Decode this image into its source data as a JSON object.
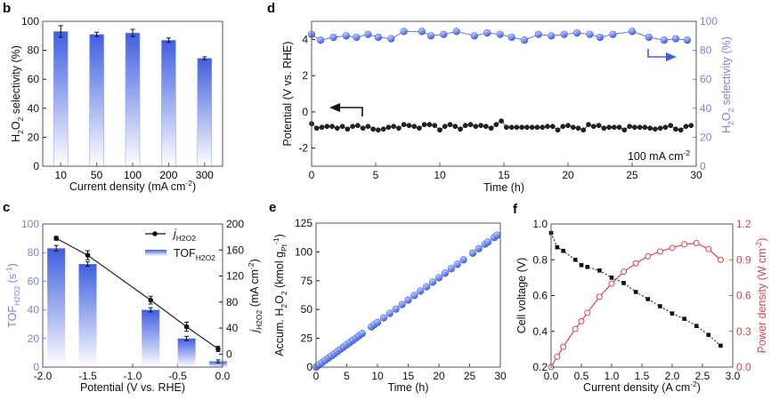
{
  "colors": {
    "blue": "#3f5fe0",
    "blue_axis": "#7b83d6",
    "red": "#d9444a",
    "black": "#111111"
  },
  "chart_data": [
    {
      "panel": "b",
      "type": "bar",
      "categories": [
        "10",
        "50",
        "100",
        "200",
        "300"
      ],
      "values": [
        93,
        91,
        92,
        87,
        74.5
      ],
      "errors": [
        4,
        1.5,
        2.5,
        1.5,
        1
      ],
      "xlabel": [
        [
          "Current density (mA cm",
          ""
        ],
        [
          "-2",
          "sup"
        ],
        [
          ")",
          ""
        ]
      ],
      "ylabel": [
        [
          "H",
          ""
        ],
        [
          "2",
          "sub"
        ],
        [
          "O",
          ""
        ],
        [
          "2",
          "sub"
        ],
        [
          " selectivity (%)",
          ""
        ]
      ],
      "ylim": [
        0,
        100
      ],
      "yticks": [
        0,
        20,
        40,
        60,
        80,
        100
      ],
      "fill": "vertical blue-to-white gradient"
    },
    {
      "panel": "d",
      "type": "line",
      "xlabel": [
        [
          "Time (h)",
          ""
        ]
      ],
      "xlim": [
        0,
        30
      ],
      "xticks": [
        0,
        5,
        10,
        15,
        20,
        25,
        30
      ],
      "ylabel": [
        [
          "Potential (V vs. RHE)",
          ""
        ]
      ],
      "ylim": [
        -3,
        5
      ],
      "yticks": [
        -2,
        0,
        2,
        4
      ],
      "y2label": [
        [
          "H",
          ""
        ],
        [
          "2",
          "sub"
        ],
        [
          "O",
          ""
        ],
        [
          "2",
          "sub"
        ],
        [
          " selectivity (%)",
          ""
        ]
      ],
      "y2lim": [
        0,
        100
      ],
      "y2ticks": [
        0,
        20,
        40,
        60,
        80,
        100
      ],
      "annotation": [
        [
          "100 mA cm",
          ""
        ],
        [
          "-2",
          "sup"
        ]
      ],
      "series": [
        {
          "axis": "left",
          "color": "#111111",
          "x": [
            0,
            0.4,
            0.8,
            1.2,
            1.6,
            2,
            2.4,
            2.8,
            3.2,
            3.6,
            4,
            4.4,
            4.8,
            5.2,
            5.6,
            6,
            6.4,
            6.8,
            7.2,
            7.6,
            8,
            8.4,
            8.8,
            9.2,
            9.6,
            10,
            10.4,
            10.8,
            11.2,
            11.6,
            12,
            12.4,
            12.8,
            13.2,
            13.6,
            14,
            14.4,
            14.8,
            15.2,
            15.6,
            16,
            16.4,
            16.8,
            17.2,
            17.6,
            18,
            18.4,
            18.8,
            19.2,
            19.6,
            20,
            20.4,
            20.8,
            21.2,
            21.6,
            22,
            22.4,
            22.8,
            23.2,
            23.6,
            24,
            24.4,
            24.8,
            25.2,
            25.6,
            26,
            26.4,
            26.8,
            27.2,
            27.6,
            28,
            28.4,
            28.8,
            29.2,
            29.6
          ],
          "y": [
            -0.65,
            -0.9,
            -0.85,
            -0.8,
            -0.8,
            -0.9,
            -0.8,
            -0.95,
            -0.8,
            -0.75,
            -0.9,
            -0.8,
            -0.95,
            -1.0,
            -0.95,
            -0.85,
            -0.8,
            -0.9,
            -0.7,
            -0.75,
            -0.8,
            -0.9,
            -0.7,
            -0.7,
            -0.75,
            -1.0,
            -0.8,
            -0.7,
            -0.8,
            -0.95,
            -0.75,
            -0.7,
            -0.8,
            -0.75,
            -0.8,
            -0.9,
            -0.7,
            -0.5,
            -0.85,
            -0.85,
            -0.85,
            -0.85,
            -0.85,
            -0.85,
            -0.85,
            -0.85,
            -0.8,
            -0.8,
            -1.0,
            -0.8,
            -0.75,
            -0.85,
            -0.9,
            -1.0,
            -0.7,
            -0.8,
            -0.75,
            -0.9,
            -0.85,
            -0.85,
            -0.85,
            -1.0,
            -0.8,
            -0.85,
            -0.85,
            -0.85,
            -0.9,
            -0.95,
            -0.9,
            -0.85,
            -0.75,
            -0.95,
            -1.0,
            -0.8,
            -0.75
          ]
        },
        {
          "axis": "right",
          "color": "#3f5fe0",
          "x": [
            0,
            0.7,
            1.7,
            2.7,
            3.5,
            4.4,
            5.2,
            6.2,
            7.2,
            8.6,
            9.3,
            10.3,
            11.3,
            12.7,
            13.7,
            14.7,
            15.6,
            16.6,
            17.7,
            18.7,
            19.7,
            20.7,
            21.7,
            22.5,
            23.5,
            25,
            26.3,
            27.5,
            28.4,
            29.3
          ],
          "y": [
            91,
            87,
            89,
            90,
            89,
            91,
            89,
            88,
            93,
            93,
            90,
            91,
            93,
            90,
            92,
            91,
            89,
            87,
            91,
            90,
            91,
            92,
            91,
            89,
            91,
            93,
            89,
            87,
            88,
            87
          ]
        }
      ]
    },
    {
      "panel": "c",
      "type": "bar+line",
      "xlabel": [
        [
          "Potential (V vs. RHE)",
          ""
        ]
      ],
      "xlim": [
        -2.0,
        0.0
      ],
      "xticks": [
        -2.0,
        -1.5,
        -1.0,
        -0.5,
        0.0
      ],
      "ylabel": [
        [
          "TOF",
          ""
        ],
        [
          "H2O2",
          "sub"
        ],
        [
          " (s",
          ""
        ],
        [
          "-1",
          "sup"
        ],
        [
          ")",
          ""
        ]
      ],
      "ylim": [
        0,
        100
      ],
      "yticks": [
        0,
        20,
        40,
        60,
        80,
        100
      ],
      "y2label": [
        [
          "j",
          "i"
        ],
        [
          "H2O2",
          "sub"
        ],
        [
          " (mA cm",
          ""
        ],
        [
          "-2",
          "sup"
        ],
        [
          ")",
          ""
        ]
      ],
      "y2lim": [
        -20,
        200
      ],
      "y2ticks": [
        0,
        40,
        80,
        120,
        160,
        200
      ],
      "x": [
        -1.85,
        -1.5,
        -0.8,
        -0.4,
        -0.05
      ],
      "series": [
        {
          "name": [
            [
              "j",
              "i"
            ],
            [
              "H2O2",
              "sub"
            ]
          ],
          "kind": "line",
          "axis": "right",
          "color": "#111111",
          "values": [
            178,
            152,
            83,
            42,
            8
          ],
          "errors": [
            3,
            7,
            6,
            7,
            4
          ]
        },
        {
          "name": [
            [
              "TOF",
              ""
            ],
            [
              "H2O2",
              "sub"
            ]
          ],
          "kind": "bar",
          "axis": "left",
          "color": "#3f5fe0",
          "values": [
            83,
            72,
            40,
            20,
            4
          ],
          "errors": [
            2,
            1.5,
            1.5,
            1.5,
            1
          ]
        }
      ],
      "legend": "top-right"
    },
    {
      "panel": "e",
      "type": "scatter",
      "xlabel": [
        [
          "Time (h)",
          ""
        ]
      ],
      "xlim": [
        0,
        30
      ],
      "xticks": [
        0,
        5,
        10,
        15,
        20,
        25,
        30
      ],
      "ylabel": [
        [
          "Accum. H",
          ""
        ],
        [
          "2",
          "sub"
        ],
        [
          "O",
          ""
        ],
        [
          "2",
          "sub"
        ],
        [
          " (kmol g",
          ""
        ],
        [
          "Pt",
          "sub"
        ],
        [
          "-1",
          "sup"
        ],
        [
          ")",
          ""
        ]
      ],
      "ylim": [
        0,
        125
      ],
      "yticks": [
        0,
        25,
        50,
        75,
        100,
        125
      ],
      "x": [
        0,
        0.25,
        0.5,
        1,
        1.5,
        2,
        2.5,
        3,
        3.5,
        4,
        4.5,
        5,
        5.5,
        6,
        6.5,
        7,
        7.5,
        9,
        9.5,
        10,
        11,
        12,
        13,
        14,
        15,
        16,
        17,
        18,
        19,
        20,
        21,
        22,
        23,
        24,
        25.5,
        26.5,
        27.5,
        28,
        29,
        29.5
      ],
      "y": [
        0,
        1,
        2,
        4,
        6,
        7.8,
        9.7,
        11.6,
        13.6,
        15.5,
        17.5,
        19.4,
        21.3,
        23.3,
        25.2,
        27.2,
        29.1,
        34.9,
        36.9,
        38.8,
        42.7,
        46.6,
        50.4,
        54.3,
        58.2,
        62.1,
        66,
        69.8,
        73.7,
        77.6,
        81.5,
        85.4,
        89.2,
        93.1,
        98.9,
        102.8,
        106.7,
        108.6,
        112.5,
        114.5
      ],
      "color": "#3f5fe0"
    },
    {
      "panel": "f",
      "type": "line",
      "xlabel": [
        [
          "Current density (A cm",
          ""
        ],
        [
          "-2",
          "sup"
        ],
        [
          ")",
          ""
        ]
      ],
      "xlim": [
        0,
        3
      ],
      "xticks": [
        0.0,
        0.5,
        1.0,
        1.5,
        2.0,
        2.5,
        3.0
      ],
      "ylabel": [
        [
          "Cell voltage (V)",
          ""
        ]
      ],
      "ylim": [
        0.2,
        1.0
      ],
      "yticks": [
        0.2,
        0.4,
        0.6,
        0.8,
        1.0
      ],
      "y2label": [
        [
          "Power density (W cm",
          ""
        ],
        [
          "-2",
          "sup"
        ],
        [
          ")",
          ""
        ]
      ],
      "y2lim": [
        0,
        1.2
      ],
      "y2ticks": [
        0.0,
        0.3,
        0.6,
        0.9,
        1.2
      ],
      "x": [
        0,
        0.1,
        0.2,
        0.4,
        0.5,
        0.6,
        0.8,
        1.0,
        1.2,
        1.4,
        1.6,
        1.8,
        2.0,
        2.2,
        2.4,
        2.6,
        2.8
      ],
      "series": [
        {
          "axis": "left",
          "color": "#111111",
          "marker": "filled-square",
          "values": [
            0.95,
            0.87,
            0.85,
            0.8,
            0.77,
            0.76,
            0.74,
            0.7,
            0.67,
            0.62,
            0.58,
            0.54,
            0.5,
            0.47,
            0.43,
            0.38,
            0.32
          ]
        },
        {
          "axis": "right",
          "color": "#d9444a",
          "marker": "open-circle",
          "values": [
            0,
            0.087,
            0.17,
            0.32,
            0.385,
            0.456,
            0.59,
            0.7,
            0.8,
            0.87,
            0.93,
            0.97,
            1.0,
            1.03,
            1.04,
            0.99,
            0.9
          ]
        }
      ]
    }
  ]
}
